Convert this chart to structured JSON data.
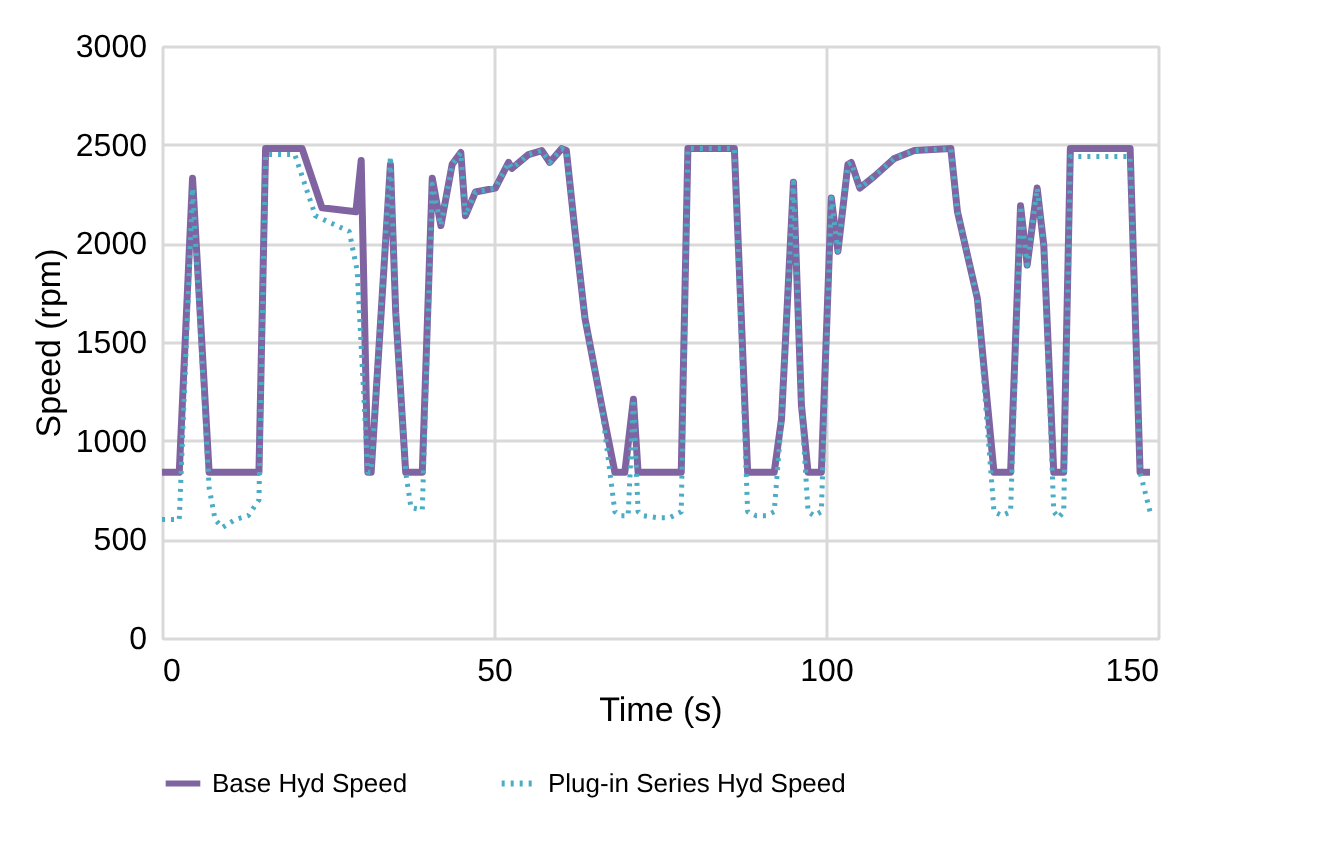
{
  "chart_data": {
    "type": "line",
    "xlabel": "Time (s)",
    "ylabel": "Speed (rpm)",
    "xlim": [
      0,
      150
    ],
    "xticks": [
      0,
      50,
      100,
      150
    ],
    "ylim": [
      0,
      3000
    ],
    "yticks": [
      0,
      500,
      1000,
      1500,
      2000,
      2500,
      3000
    ],
    "grid": true,
    "legend": "bottom",
    "marker": "none",
    "series": [
      {
        "name": "Base Hyd Speed",
        "color": "#8064a2",
        "line_style": "solid",
        "x": [
          0,
          2.6,
          4.6,
          7.1,
          14.6,
          15.6,
          21.1,
          24.1,
          29.2,
          30.0,
          31.0,
          31.5,
          34.4,
          35.2,
          36.7,
          39.2,
          40.7,
          42.0,
          43.7,
          45.0,
          45.7,
          47.2,
          50.2,
          52.2,
          52.7,
          55.2,
          57.2,
          58.4,
          60.2,
          60.9,
          62.2,
          63.7,
          66.2,
          68.2,
          69.7,
          71.0,
          71.7,
          78.2,
          79.2,
          86.2,
          88.2,
          92.2,
          93.3,
          95.1,
          96.3,
          97.3,
          99.3,
          100.8,
          101.8,
          103.3,
          103.8,
          105.1,
          107.3,
          110.3,
          113.3,
          118.8,
          119.8,
          122.8,
          125.3,
          127.8,
          129.3,
          130.3,
          131.8,
          132.8,
          134.3,
          135.8,
          136.8,
          145.8,
          147.3,
          148.8
        ],
        "values": [
          840,
          840,
          2330,
          840,
          840,
          2480,
          2480,
          2180,
          2160,
          2420,
          840,
          840,
          2400,
          1650,
          840,
          840,
          2330,
          2090,
          2400,
          2460,
          2140,
          2260,
          2280,
          2410,
          2380,
          2450,
          2470,
          2410,
          2480,
          2470,
          2060,
          1620,
          1180,
          840,
          840,
          1210,
          840,
          840,
          2480,
          2480,
          840,
          840,
          1110,
          2310,
          1180,
          840,
          840,
          2230,
          1960,
          2400,
          2410,
          2280,
          2340,
          2430,
          2470,
          2480,
          2160,
          1720,
          840,
          840,
          2190,
          1890,
          2280,
          1990,
          840,
          840,
          2480,
          2480,
          840,
          840
        ]
      },
      {
        "name": "Plug-in Series Hyd Speed",
        "color": "#4bacc6",
        "line_style": "dotted",
        "x": [
          0,
          2.6,
          4.6,
          7.1,
          8.0,
          9.1,
          11.0,
          13.0,
          14.6,
          15.6,
          20.0,
          23.1,
          28.2,
          29.4,
          31.0,
          31.5,
          34.4,
          35.2,
          36.7,
          37.5,
          39.2,
          40.7,
          42.0,
          43.7,
          45.0,
          45.7,
          47.2,
          50.2,
          52.2,
          52.7,
          55.2,
          57.2,
          58.4,
          60.2,
          60.9,
          62.2,
          63.7,
          66.2,
          68.2,
          69.0,
          70.2,
          71.0,
          71.7,
          72.5,
          74.5,
          76.5,
          78.2,
          79.2,
          86.2,
          88.2,
          89.5,
          91.0,
          92.2,
          93.3,
          95.1,
          96.3,
          97.3,
          98.2,
          99.3,
          100.8,
          101.8,
          103.3,
          103.8,
          105.1,
          107.3,
          110.3,
          113.3,
          118.8,
          119.8,
          122.8,
          125.3,
          126.5,
          127.8,
          129.3,
          130.3,
          131.8,
          132.8,
          134.3,
          135.0,
          135.8,
          136.8,
          140.0,
          145.8,
          147.3,
          148.8
        ],
        "values": [
          600,
          600,
          2280,
          760,
          600,
          560,
          600,
          620,
          700,
          2450,
          2450,
          2140,
          2060,
          1860,
          840,
          840,
          2440,
          1650,
          840,
          660,
          650,
          2300,
          2090,
          2400,
          2460,
          2140,
          2260,
          2280,
          2410,
          2380,
          2450,
          2470,
          2410,
          2480,
          2470,
          2060,
          1620,
          1180,
          640,
          620,
          620,
          1210,
          640,
          620,
          610,
          610,
          640,
          2480,
          2480,
          640,
          620,
          620,
          640,
          1110,
          2310,
          1180,
          640,
          620,
          640,
          2230,
          1960,
          2400,
          2410,
          2280,
          2340,
          2430,
          2470,
          2480,
          2160,
          1720,
          640,
          620,
          640,
          2190,
          1890,
          2280,
          1990,
          640,
          610,
          640,
          2440,
          2440,
          2440,
          840,
          640
        ]
      }
    ]
  }
}
